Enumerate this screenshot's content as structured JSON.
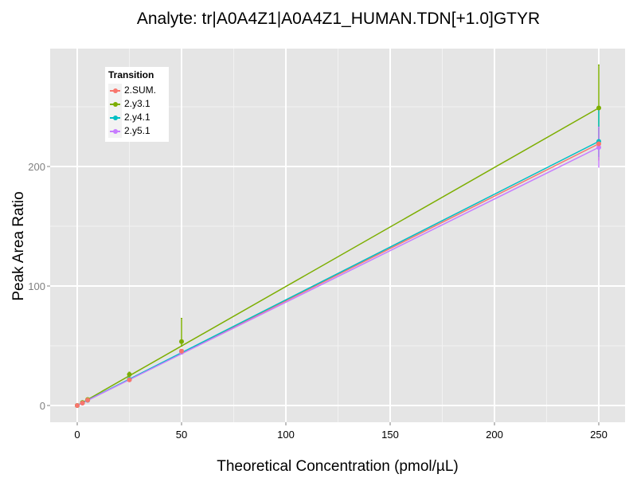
{
  "chart_data": {
    "type": "line",
    "title": "Analyte: tr|A0A4Z1|A0A4Z1_HUMAN.TDN[+1.0]GTYR",
    "xlabel": "Theoretical Concentration (pmol/µL)",
    "ylabel": "Peak Area Ratio",
    "xlim": [
      -13,
      263
    ],
    "ylim": [
      -14,
      299
    ],
    "xticks": [
      0,
      50,
      100,
      150,
      200,
      250
    ],
    "yticks": [
      0,
      100,
      200
    ],
    "grid": true,
    "legend": {
      "title": "Transition",
      "position": "inside-top-left"
    },
    "x": [
      0,
      2.5,
      5,
      25,
      50,
      250
    ],
    "series": [
      {
        "name": "2.SUM.",
        "color": "#F8766D",
        "values": [
          0,
          2,
          4.5,
          21.5,
          45.5,
          219
        ],
        "error_low": [
          0,
          1.5,
          4,
          20.5,
          44,
          205
        ],
        "error_high": [
          0,
          2.5,
          5,
          22.5,
          47,
          233
        ]
      },
      {
        "name": "2.y3.1",
        "color": "#7CAE00",
        "values": [
          0,
          2.5,
          5,
          26,
          53.5,
          249
        ],
        "error_low": [
          0,
          2,
          4.5,
          24,
          49,
          214
        ],
        "error_high": [
          0,
          3,
          5.5,
          28,
          73,
          285
        ]
      },
      {
        "name": "2.y4.1",
        "color": "#00BFC4",
        "values": [
          0,
          2.2,
          4.4,
          22,
          45.5,
          221
        ],
        "error_low": [
          0,
          1.7,
          4,
          21,
          44,
          208
        ],
        "error_high": [
          0,
          2.7,
          5,
          23,
          47,
          249
        ]
      },
      {
        "name": "2.y5.1",
        "color": "#C77CFF",
        "values": [
          0,
          2.1,
          4.3,
          21.5,
          44.5,
          216
        ],
        "error_low": [
          0,
          1.6,
          3.9,
          20.5,
          43,
          199
        ],
        "error_high": [
          0,
          2.6,
          4.8,
          22.5,
          46,
          233
        ]
      }
    ]
  },
  "legend": {
    "title": "Transition",
    "items": [
      {
        "label": "2.SUM.",
        "color": "#F8766D"
      },
      {
        "label": "2.y3.1",
        "color": "#7CAE00"
      },
      {
        "label": "2.y4.1",
        "color": "#00BFC4"
      },
      {
        "label": "2.y5.1",
        "color": "#C77CFF"
      }
    ]
  },
  "axes": {
    "x_tick_labels": [
      "0",
      "50",
      "100",
      "150",
      "200",
      "250"
    ],
    "y_tick_labels": [
      "0",
      "100",
      "200"
    ]
  }
}
